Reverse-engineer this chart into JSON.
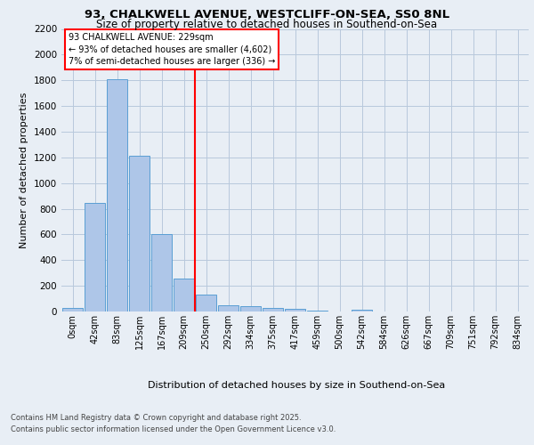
{
  "title_line1": "93, CHALKWELL AVENUE, WESTCLIFF-ON-SEA, SS0 8NL",
  "title_line2": "Size of property relative to detached houses in Southend-on-Sea",
  "xlabel": "Distribution of detached houses by size in Southend-on-Sea",
  "ylabel": "Number of detached properties",
  "bar_labels": [
    "0sqm",
    "42sqm",
    "83sqm",
    "125sqm",
    "167sqm",
    "209sqm",
    "250sqm",
    "292sqm",
    "334sqm",
    "375sqm",
    "417sqm",
    "459sqm",
    "500sqm",
    "542sqm",
    "584sqm",
    "626sqm",
    "667sqm",
    "709sqm",
    "751sqm",
    "792sqm",
    "834sqm"
  ],
  "bar_values": [
    25,
    845,
    1810,
    1210,
    600,
    255,
    130,
    50,
    45,
    30,
    20,
    10,
    0,
    15,
    0,
    0,
    0,
    0,
    0,
    0,
    0
  ],
  "bar_color": "#aec6e8",
  "bar_edge_color": "#5a9fd4",
  "annotation_title": "93 CHALKWELL AVENUE: 229sqm",
  "annotation_line1": "← 93% of detached houses are smaller (4,602)",
  "annotation_line2": "7% of semi-detached houses are larger (336) →",
  "ylim": [
    0,
    2200
  ],
  "yticks": [
    0,
    200,
    400,
    600,
    800,
    1000,
    1200,
    1400,
    1600,
    1800,
    2000,
    2200
  ],
  "bg_color": "#e8eef5",
  "plot_bg_color": "#e8eef5",
  "footer_line1": "Contains HM Land Registry data © Crown copyright and database right 2025.",
  "footer_line2": "Contains public sector information licensed under the Open Government Licence v3.0."
}
